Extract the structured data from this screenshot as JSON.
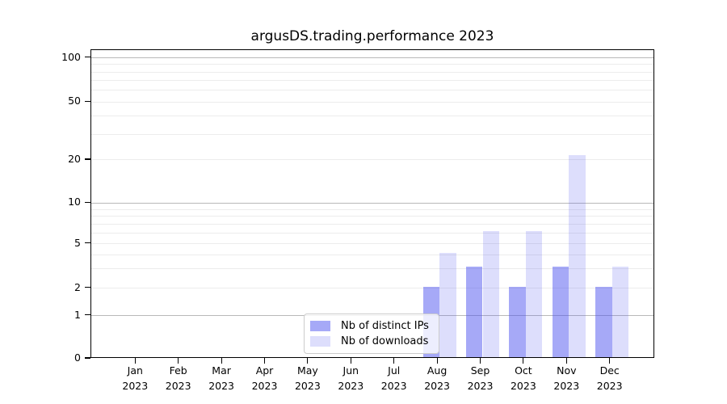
{
  "chart_data": {
    "type": "bar",
    "title": "argusDS.trading.performance 2023",
    "year_label": "2023",
    "categories": [
      "Jan",
      "Feb",
      "Mar",
      "Apr",
      "May",
      "Jun",
      "Jul",
      "Aug",
      "Sep",
      "Oct",
      "Nov",
      "Dec"
    ],
    "series": [
      {
        "name": "Nb of distinct IPs",
        "key": "distinct-ips",
        "color": "rgba(74,80,238,0.49)",
        "values": [
          0,
          0,
          0,
          0,
          0,
          0,
          0,
          2,
          3,
          2,
          3,
          2
        ]
      },
      {
        "name": "Nb of downloads",
        "key": "downloads",
        "color": "rgba(74,80,238,0.19)",
        "values": [
          0,
          0,
          0,
          0,
          0,
          0,
          0,
          4,
          6,
          6,
          21,
          3
        ]
      }
    ],
    "yscale": "symlog",
    "ylim": [
      0,
      110
    ],
    "yticks": [
      0,
      1,
      2,
      5,
      10,
      20,
      50,
      100
    ],
    "gridlines_major": [
      1,
      10,
      100
    ],
    "gridlines_minor": [
      2,
      3,
      4,
      5,
      6,
      7,
      8,
      9,
      20,
      30,
      40,
      50,
      60,
      70,
      80,
      90
    ],
    "grid": "horizontal, major and minor",
    "legend_position": "inside lower-center",
    "xlabel": "",
    "ylabel": ""
  }
}
